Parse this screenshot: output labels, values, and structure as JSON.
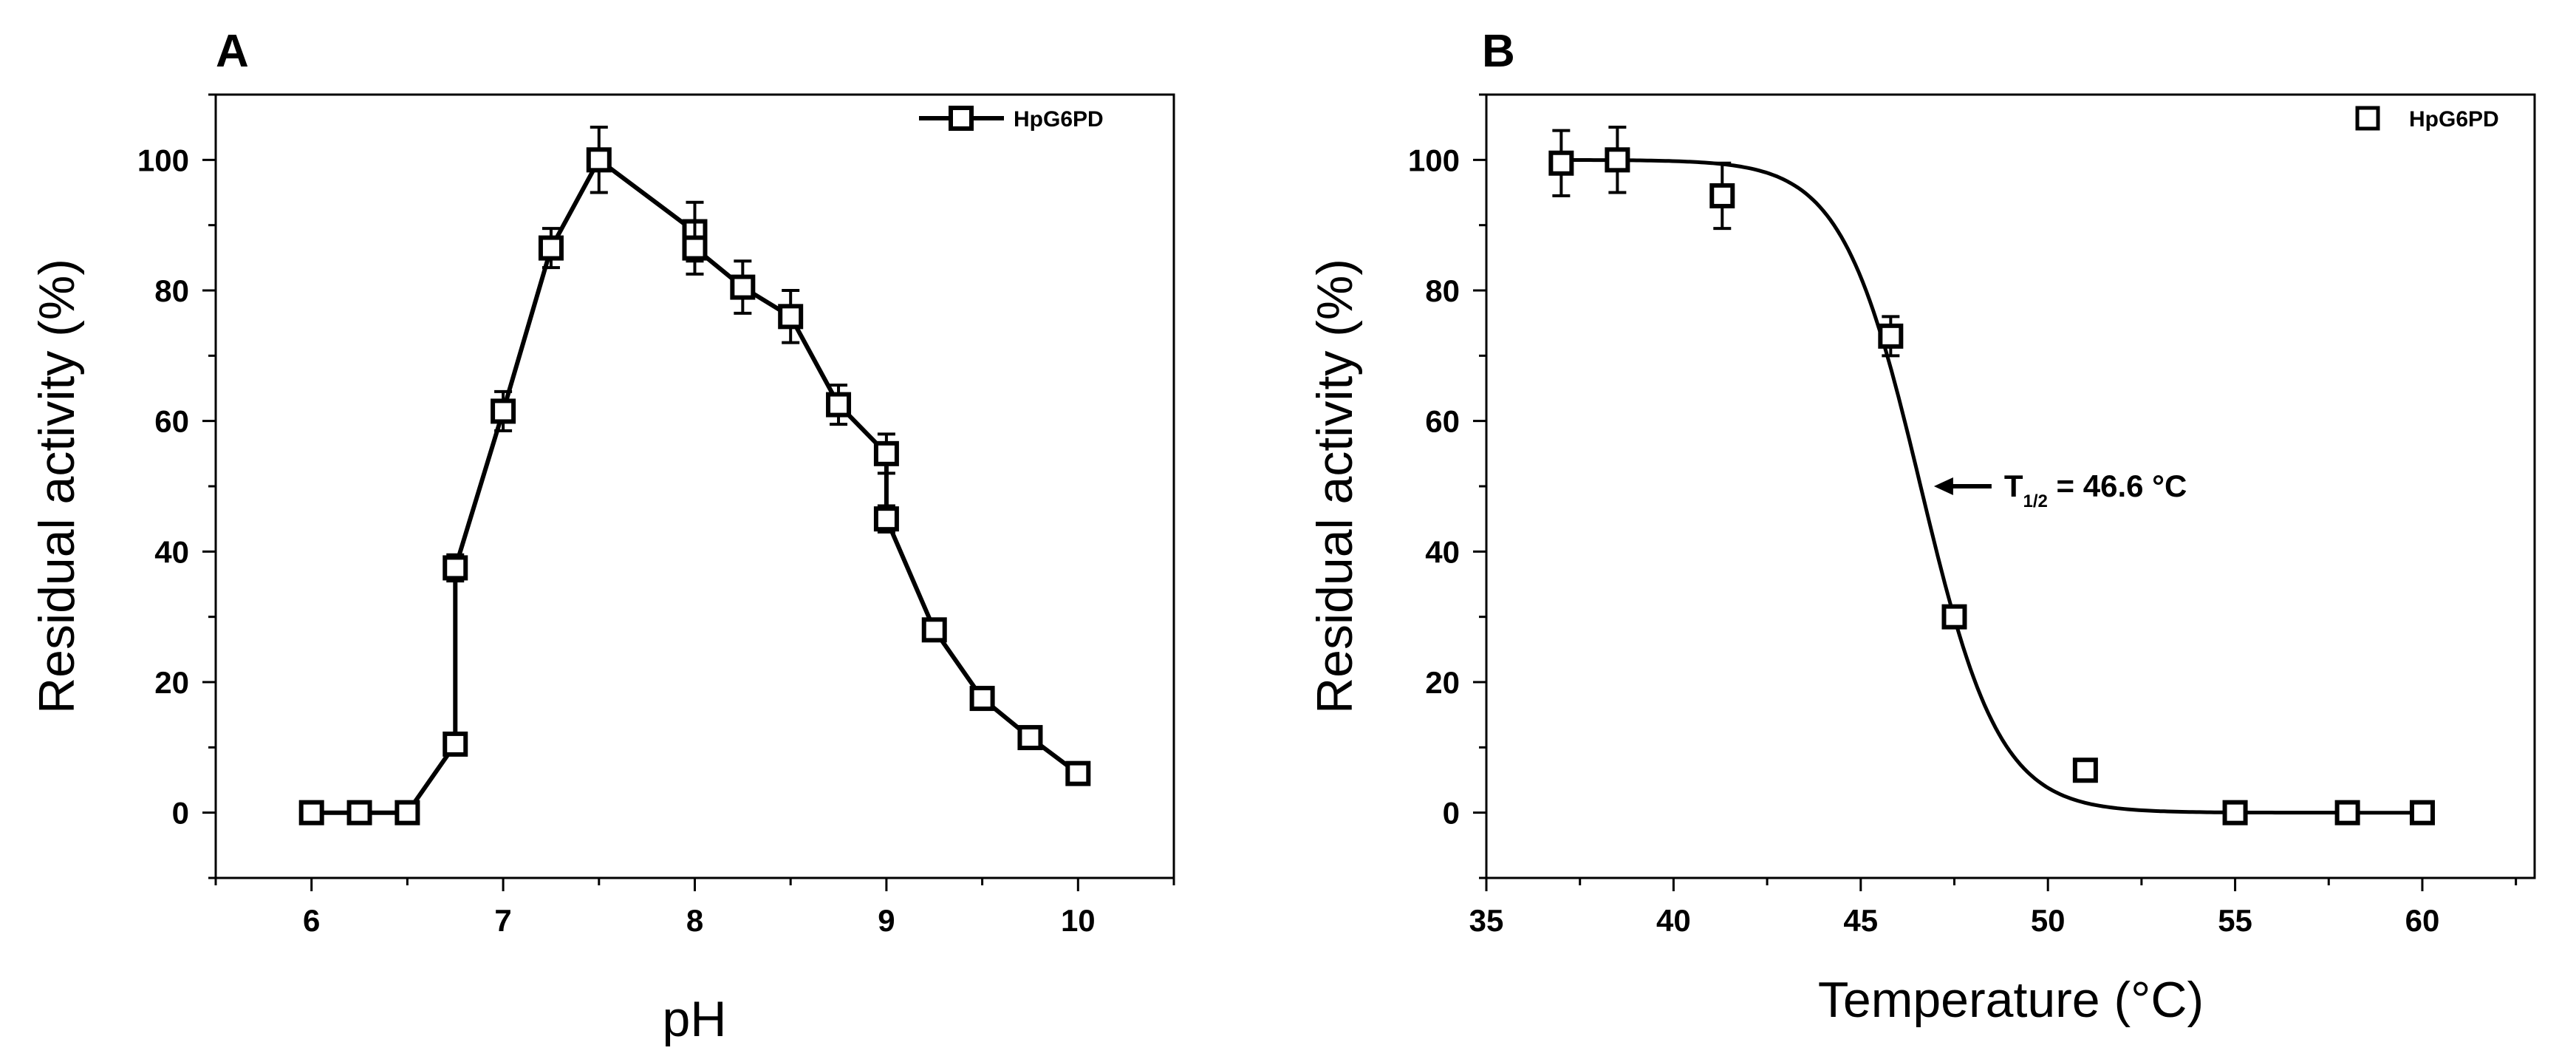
{
  "chart_data": [
    {
      "panel": "A",
      "type": "line",
      "xlabel": "pH",
      "ylabel": "Residual activity (%)",
      "xlim": [
        5.5,
        10.5
      ],
      "ylim": [
        -10,
        110
      ],
      "xticks": [
        6,
        7,
        8,
        9,
        10
      ],
      "yticks": [
        0,
        20,
        40,
        60,
        80,
        100
      ],
      "legend": {
        "label": "HpG6PD",
        "position": "top-right",
        "style": "line+square"
      },
      "series": [
        {
          "name": "HpG6PD",
          "marker": "open-square",
          "connected": true,
          "x": [
            6,
            6.25,
            6.5,
            6.75,
            6.75,
            7,
            7.25,
            7.5,
            8,
            8,
            8.25,
            8.5,
            8.75,
            9,
            9,
            9.25,
            9.5,
            9.75,
            10
          ],
          "y": [
            0,
            0,
            0,
            10.5,
            37.5,
            61.5,
            86.5,
            100,
            89,
            86.5,
            80.5,
            76,
            62.5,
            55,
            45,
            28,
            17.5,
            11.5,
            6
          ],
          "error": [
            0,
            0,
            0,
            1.5,
            2,
            3,
            3,
            5,
            4.5,
            4,
            4,
            4,
            3,
            3,
            2,
            1.5,
            1.5,
            1.5,
            1.5
          ]
        }
      ]
    },
    {
      "panel": "B",
      "type": "scatter",
      "xlabel": "Temperature (°C)",
      "ylabel": "Residual activity (%)",
      "xlim": [
        35,
        63
      ],
      "ylim": [
        -10,
        110
      ],
      "xticks": [
        35,
        40,
        45,
        50,
        55,
        60
      ],
      "yticks": [
        0,
        20,
        40,
        60,
        80,
        100
      ],
      "legend": {
        "label": "HpG6PD",
        "position": "top-right",
        "style": "square"
      },
      "series": [
        {
          "name": "HpG6PD",
          "marker": "open-square",
          "connected": false,
          "x": [
            37,
            38.5,
            41.3,
            45.8,
            47.5,
            51,
            55,
            58,
            60
          ],
          "y": [
            99.5,
            100,
            94.5,
            73,
            30,
            6.5,
            0,
            0,
            0
          ],
          "error": [
            5,
            5,
            5,
            3,
            1.5,
            1.5,
            0,
            0,
            0
          ]
        }
      ],
      "fit": {
        "type": "sigmoid",
        "top": 100,
        "bottom": 0,
        "midpoint": 46.6,
        "slope": 0.95,
        "x_range": [
          37,
          60
        ]
      },
      "annotation": {
        "text_main": "T",
        "text_sub": "1/2",
        "text_rest": " = 46.6 °C",
        "arrow_to": [
          46.6,
          50
        ]
      }
    }
  ]
}
